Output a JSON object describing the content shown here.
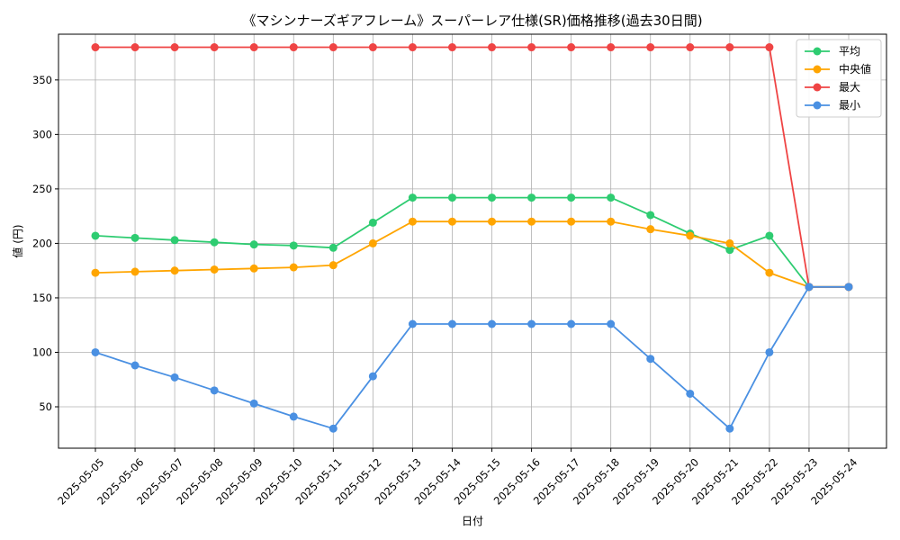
{
  "chart_data": {
    "type": "line",
    "title": "《マシンナーズギアフレーム》スーパーレア仕様(SR)価格推移(過去30日間)",
    "xlabel": "日付",
    "ylabel": "値 (円)",
    "ylim": [
      12,
      392
    ],
    "yticks": [
      50,
      100,
      150,
      200,
      250,
      300,
      350
    ],
    "grid": true,
    "legend_position": "top-right",
    "categories": [
      "2025-05-05",
      "2025-05-06",
      "2025-05-07",
      "2025-05-08",
      "2025-05-09",
      "2025-05-10",
      "2025-05-11",
      "2025-05-12",
      "2025-05-13",
      "2025-05-14",
      "2025-05-15",
      "2025-05-16",
      "2025-05-17",
      "2025-05-18",
      "2025-05-19",
      "2025-05-20",
      "2025-05-21",
      "2025-05-22",
      "2025-05-23",
      "2025-05-24"
    ],
    "series": [
      {
        "name": "平均",
        "color": "#2ecc71",
        "values": [
          207,
          205,
          203,
          201,
          199,
          198,
          196,
          219,
          242,
          242,
          242,
          242,
          242,
          242,
          226,
          209,
          194,
          207,
          160,
          160
        ]
      },
      {
        "name": "中央値",
        "color": "#ffa500",
        "values": [
          173,
          174,
          175,
          176,
          177,
          178,
          180,
          200,
          220,
          220,
          220,
          220,
          220,
          220,
          213,
          207,
          200,
          173,
          160,
          160
        ]
      },
      {
        "name": "最大",
        "color": "#ef4444",
        "values": [
          380,
          380,
          380,
          380,
          380,
          380,
          380,
          380,
          380,
          380,
          380,
          380,
          380,
          380,
          380,
          380,
          380,
          380,
          160,
          160
        ]
      },
      {
        "name": "最小",
        "color": "#4a90e2",
        "values": [
          100,
          88,
          77,
          65,
          53,
          41,
          30,
          78,
          126,
          126,
          126,
          126,
          126,
          126,
          94,
          62,
          30,
          100,
          160,
          160
        ]
      }
    ]
  }
}
